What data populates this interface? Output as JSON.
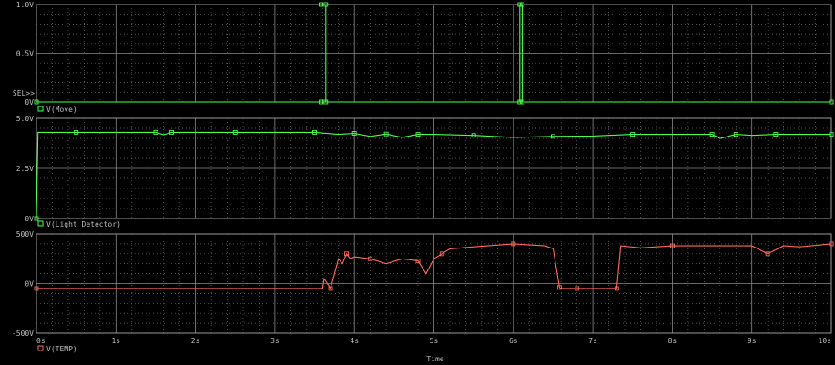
{
  "chart_data": {
    "type": "line",
    "xlabel": "Time",
    "x_unit": "s",
    "xlim": [
      0,
      10
    ],
    "x_ticks": [
      "0s",
      "1s",
      "2s",
      "3s",
      "4s",
      "5s",
      "6s",
      "7s",
      "8s",
      "9s",
      "10s"
    ],
    "grid": true,
    "plots": [
      {
        "legend": "V(Move)",
        "color": "#4cff4c",
        "marker": "square",
        "ylim": [
          0,
          1.0
        ],
        "y_ticks": [
          "1.0V",
          "0.5V",
          "0V"
        ],
        "y_tick_values": [
          1.0,
          0.5,
          0
        ],
        "sel_marker": "SEL>>",
        "series": [
          {
            "name": "V(Move)",
            "x": [
              0,
              3.58,
              3.58,
              3.64,
              3.64,
              6.08,
              6.08,
              6.11,
              6.11,
              10
            ],
            "y": [
              0,
              0,
              1.0,
              1.0,
              0,
              0,
              1.0,
              1.0,
              0,
              0
            ]
          }
        ]
      },
      {
        "legend": "V(Light_Detector)",
        "color": "#4cff4c",
        "marker": "square",
        "ylim": [
          0,
          5.0
        ],
        "y_ticks": [
          "5.0V",
          "2.5V",
          "0V"
        ],
        "y_tick_values": [
          5.0,
          2.5,
          0
        ],
        "series": [
          {
            "name": "V(Light_Detector)",
            "x": [
              0,
              0.02,
              0.5,
              1.0,
              1.5,
              1.6,
              1.7,
              2.0,
              2.5,
              3.0,
              3.5,
              3.8,
              4.0,
              4.2,
              4.4,
              4.6,
              4.8,
              5.0,
              5.5,
              6.0,
              6.5,
              7.0,
              7.5,
              8.0,
              8.5,
              8.6,
              8.8,
              9.0,
              9.3,
              9.5,
              10
            ],
            "y": [
              0,
              4.3,
              4.3,
              4.3,
              4.3,
              4.18,
              4.3,
              4.3,
              4.3,
              4.3,
              4.3,
              4.2,
              4.25,
              4.1,
              4.22,
              4.05,
              4.2,
              4.2,
              4.15,
              4.05,
              4.1,
              4.12,
              4.2,
              4.2,
              4.2,
              4.0,
              4.2,
              4.15,
              4.2,
              4.2,
              4.2
            ]
          }
        ]
      },
      {
        "legend": "V(TEMP)",
        "color": "#ff6a5c",
        "marker": "square",
        "ylim": [
          -500,
          500
        ],
        "y_ticks": [
          "500V",
          "0V",
          "-500V"
        ],
        "y_tick_values": [
          500,
          0,
          -500
        ],
        "series": [
          {
            "name": "V(TEMP)",
            "x": [
              0,
              3.6,
              3.62,
              3.7,
              3.8,
              3.85,
              3.9,
              3.95,
              4.0,
              4.2,
              4.4,
              4.6,
              4.8,
              4.9,
              5.0,
              5.1,
              5.2,
              5.5,
              6.0,
              6.4,
              6.5,
              6.58,
              6.6,
              6.62,
              6.8,
              7.0,
              7.2,
              7.3,
              7.35,
              7.6,
              8.0,
              8.5,
              9.0,
              9.2,
              9.4,
              9.6,
              10
            ],
            "y": [
              -50,
              -50,
              50,
              -50,
              250,
              200,
              300,
              250,
              270,
              250,
              200,
              250,
              230,
              100,
              250,
              300,
              350,
              370,
              400,
              380,
              350,
              -40,
              -50,
              -50,
              -50,
              -50,
              -50,
              -50,
              380,
              360,
              380,
              380,
              380,
              300,
              380,
              370,
              400
            ]
          }
        ]
      }
    ]
  }
}
